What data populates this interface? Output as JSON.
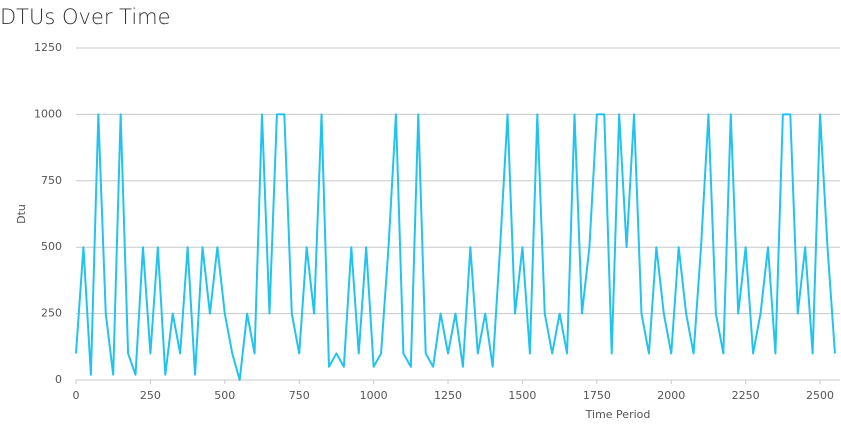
{
  "chart_data": {
    "type": "line",
    "title": "DTUs Over Time",
    "x_label": "Time Period",
    "y_label": "Dtu",
    "x": [
      0,
      25,
      50,
      75,
      100,
      125,
      150,
      175,
      200,
      225,
      250,
      275,
      300,
      325,
      350,
      375,
      400,
      425,
      450,
      475,
      500,
      525,
      550,
      575,
      600,
      625,
      650,
      675,
      700,
      725,
      750,
      775,
      800,
      825,
      850,
      875,
      900,
      925,
      950,
      975,
      1000,
      1025,
      1050,
      1075,
      1100,
      1125,
      1150,
      1175,
      1200,
      1225,
      1250,
      1275,
      1300,
      1325,
      1350,
      1375,
      1400,
      1425,
      1450,
      1475,
      1500,
      1525,
      1550,
      1575,
      1600,
      1625,
      1650,
      1675,
      1700,
      1725,
      1750,
      1775,
      1800,
      1825,
      1850,
      1875,
      1900,
      1925,
      1950,
      1975,
      2000,
      2025,
      2050,
      2075,
      2100,
      2125,
      2150,
      2175,
      2200,
      2225,
      2250,
      2275,
      2300,
      2325,
      2350,
      2375,
      2400,
      2425,
      2450,
      2475,
      2500,
      2525,
      2550
    ],
    "series": [
      {
        "name": "Dtu",
        "color": "#22c3ef",
        "values": [
          100,
          500,
          20,
          1000,
          250,
          20,
          1000,
          100,
          20,
          500,
          100,
          500,
          20,
          250,
          100,
          500,
          20,
          500,
          250,
          500,
          250,
          100,
          0,
          250,
          100,
          1000,
          250,
          1000,
          1000,
          250,
          100,
          500,
          250,
          1000,
          50,
          100,
          50,
          500,
          100,
          500,
          50,
          100,
          500,
          1000,
          100,
          50,
          1000,
          100,
          50,
          250,
          100,
          250,
          50,
          500,
          100,
          250,
          50,
          500,
          1000,
          250,
          500,
          100,
          1000,
          250,
          100,
          250,
          100,
          1000,
          250,
          500,
          1000,
          1000,
          100,
          1000,
          500,
          1000,
          250,
          100,
          500,
          250,
          100,
          500,
          250,
          100,
          500,
          1000,
          250,
          100,
          1000,
          250,
          500,
          100,
          250,
          500,
          100,
          1000,
          1000,
          250,
          500,
          100,
          1000,
          500,
          100
        ]
      }
    ],
    "xlim": [
      0,
      2567
    ],
    "ylim": [
      0,
      1250
    ],
    "xticks": [
      0,
      250,
      500,
      750,
      1000,
      1250,
      1500,
      1750,
      2000,
      2250,
      2500
    ],
    "yticks": [
      0,
      250,
      500,
      750,
      1000,
      1250
    ],
    "grid": true
  }
}
